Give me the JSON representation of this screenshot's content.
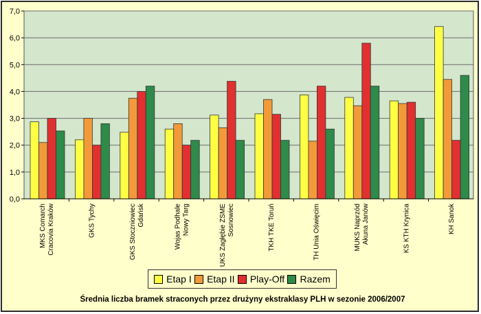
{
  "chart_data": {
    "type": "bar",
    "title": "Średnia liczba bramek straconych przez drużyny ekstraklasy PLH w sezonie 2006/2007",
    "categories": [
      [
        "MKS Comarch",
        "Cracovia Kraków"
      ],
      [
        "GKS Tychy"
      ],
      [
        "GKS Stoczniowiec",
        "Gdańsk"
      ],
      [
        "Wojas Podhale",
        "Nowy Targ"
      ],
      [
        "UKS Zagłębie ZSME",
        "Sosnowiec"
      ],
      [
        "TKH TKE Toruń"
      ],
      [
        "TH Unia Oświęcim"
      ],
      [
        "MUKS Naprzód",
        "Akuna Janów"
      ],
      [
        "KS KTH Krynica"
      ],
      [
        "KH Sanok"
      ]
    ],
    "series": [
      {
        "name": "Etap I",
        "color": "#ffff44",
        "values": [
          2.87,
          2.2,
          2.48,
          2.6,
          3.12,
          3.17,
          3.87,
          3.78,
          3.65,
          6.42
        ]
      },
      {
        "name": "Etap II",
        "color": "#f29a3a",
        "values": [
          2.1,
          3.0,
          3.75,
          2.8,
          2.65,
          3.7,
          2.15,
          3.47,
          3.55,
          4.45
        ]
      },
      {
        "name": "Play-Off",
        "color": "#e03030",
        "values": [
          3.0,
          2.0,
          4.0,
          2.0,
          4.38,
          3.15,
          4.2,
          5.8,
          3.6,
          2.18
        ]
      },
      {
        "name": "Razem",
        "color": "#2e8b4a",
        "values": [
          2.53,
          2.8,
          4.2,
          2.18,
          2.18,
          2.18,
          2.6,
          4.2,
          3.0,
          4.6
        ]
      }
    ],
    "y_ticks": [
      "0,0",
      "1,0",
      "2,0",
      "3,0",
      "4,0",
      "5,0",
      "6,0",
      "7,0"
    ],
    "ylim": [
      0,
      7
    ],
    "grid": true,
    "legend_position": "bottom",
    "plot_background": "#d4e6cc"
  }
}
